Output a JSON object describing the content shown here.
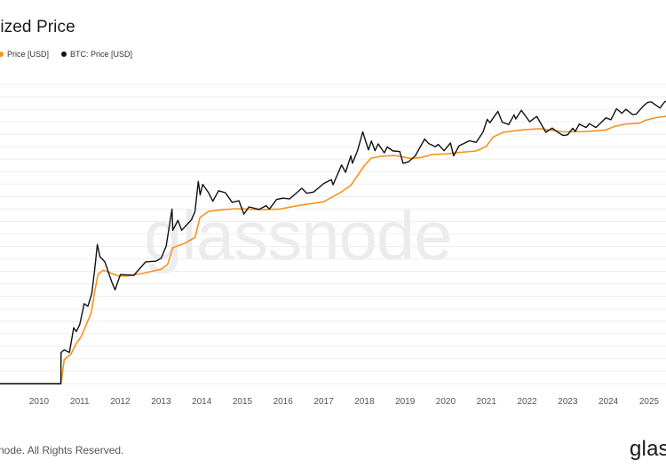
{
  "header": {
    "title": "lized Price",
    "legend": [
      {
        "label": "Price [USD]",
        "color": "#f7931a"
      },
      {
        "label": "BTC: Price [USD]",
        "color": "#111111"
      }
    ]
  },
  "watermark": "glassnode",
  "footer": {
    "copyright": "node. All Rights Reserved.",
    "brand": "glas"
  },
  "chart_data": {
    "type": "line",
    "title": "lized Price",
    "xlabel": "",
    "ylabel": "",
    "y_scale": "log",
    "ylim": [
      0.01,
      300000
    ],
    "x_ticks": [
      "2010",
      "2011",
      "2012",
      "2013",
      "2014",
      "2015",
      "2016",
      "2017",
      "2018",
      "2019",
      "2020",
      "2021",
      "2022",
      "2023",
      "2024",
      "2025"
    ],
    "xlim": [
      "2009-01-03",
      "2025-08-31"
    ],
    "grid": "horizontal",
    "legend_position": "top-left",
    "series": [
      {
        "name": "BTC: Price [USD]",
        "color": "#111111",
        "points": [
          [
            "2009-01-03",
            0.01
          ],
          [
            "2010-07-15",
            0.01
          ],
          [
            "2010-07-18",
            0.06
          ],
          [
            "2010-08-15",
            0.07
          ],
          [
            "2010-10-01",
            0.06
          ],
          [
            "2010-11-08",
            0.25
          ],
          [
            "2010-12-01",
            0.2
          ],
          [
            "2011-01-01",
            0.3
          ],
          [
            "2011-02-10",
            1.0
          ],
          [
            "2011-03-15",
            0.85
          ],
          [
            "2011-04-20",
            1.8
          ],
          [
            "2011-05-15",
            7.0
          ],
          [
            "2011-06-08",
            30.0
          ],
          [
            "2011-07-01",
            15.0
          ],
          [
            "2011-08-15",
            11.0
          ],
          [
            "2011-10-15",
            3.5
          ],
          [
            "2011-11-15",
            2.2
          ],
          [
            "2012-01-01",
            5.3
          ],
          [
            "2012-05-01",
            5.1
          ],
          [
            "2012-08-15",
            11.0
          ],
          [
            "2012-11-15",
            11.5
          ],
          [
            "2013-01-01",
            13.5
          ],
          [
            "2013-02-15",
            27.0
          ],
          [
            "2013-04-09",
            230.0
          ],
          [
            "2013-04-16",
            68.0
          ],
          [
            "2013-06-01",
            120.0
          ],
          [
            "2013-07-05",
            68.0
          ],
          [
            "2013-10-01",
            125.0
          ],
          [
            "2013-11-01",
            200.0
          ],
          [
            "2013-12-01",
            1130.0
          ],
          [
            "2013-12-18",
            520.0
          ],
          [
            "2014-01-10",
            950.0
          ],
          [
            "2014-03-01",
            600.0
          ],
          [
            "2014-04-11",
            360.0
          ],
          [
            "2014-06-01",
            660.0
          ],
          [
            "2014-08-01",
            590.0
          ],
          [
            "2014-10-01",
            340.0
          ],
          [
            "2014-12-01",
            370.0
          ],
          [
            "2015-01-14",
            172.0
          ],
          [
            "2015-03-01",
            260.0
          ],
          [
            "2015-06-01",
            225.0
          ],
          [
            "2015-08-01",
            280.0
          ],
          [
            "2015-09-01",
            230.0
          ],
          [
            "2015-11-04",
            400.0
          ],
          [
            "2016-01-01",
            430.0
          ],
          [
            "2016-03-01",
            415.0
          ],
          [
            "2016-06-18",
            760.0
          ],
          [
            "2016-08-01",
            570.0
          ],
          [
            "2016-10-01",
            610.0
          ],
          [
            "2017-01-01",
            1000.0
          ],
          [
            "2017-03-10",
            1250.0
          ],
          [
            "2017-03-25",
            930.0
          ],
          [
            "2017-06-10",
            2900.0
          ],
          [
            "2017-07-15",
            1900.0
          ],
          [
            "2017-09-01",
            4900.0
          ],
          [
            "2017-09-15",
            3200.0
          ],
          [
            "2017-11-01",
            6800.0
          ],
          [
            "2017-12-17",
            19500.0
          ],
          [
            "2018-02-06",
            6900.0
          ],
          [
            "2018-03-05",
            11500.0
          ],
          [
            "2018-04-06",
            6600.0
          ],
          [
            "2018-05-05",
            9800.0
          ],
          [
            "2018-06-29",
            5850.0
          ],
          [
            "2018-07-25",
            8200.0
          ],
          [
            "2018-09-15",
            6500.0
          ],
          [
            "2018-11-14",
            6300.0
          ],
          [
            "2018-12-15",
            3200.0
          ],
          [
            "2019-02-01",
            3500.0
          ],
          [
            "2019-04-02",
            4900.0
          ],
          [
            "2019-06-26",
            12900.0
          ],
          [
            "2019-08-01",
            10000.0
          ],
          [
            "2019-09-30",
            8300.0
          ],
          [
            "2019-10-26",
            9500.0
          ],
          [
            "2019-12-17",
            6600.0
          ],
          [
            "2020-02-13",
            10300.0
          ],
          [
            "2020-03-12",
            4900.0
          ],
          [
            "2020-05-01",
            8800.0
          ],
          [
            "2020-08-01",
            11700.0
          ],
          [
            "2020-10-01",
            10700.0
          ],
          [
            "2020-12-01",
            19200.0
          ],
          [
            "2021-01-08",
            40000.0
          ],
          [
            "2021-02-01",
            33000.0
          ],
          [
            "2021-04-14",
            63500.0
          ],
          [
            "2021-05-23",
            34000.0
          ],
          [
            "2021-07-20",
            29800.0
          ],
          [
            "2021-09-06",
            52000.0
          ],
          [
            "2021-09-21",
            41000.0
          ],
          [
            "2021-11-10",
            67500.0
          ],
          [
            "2022-01-24",
            35000.0
          ],
          [
            "2022-03-29",
            47500.0
          ],
          [
            "2022-05-12",
            29000.0
          ],
          [
            "2022-06-18",
            19000.0
          ],
          [
            "2022-08-14",
            24300.0
          ],
          [
            "2022-10-01",
            19300.0
          ],
          [
            "2022-11-21",
            15800.0
          ],
          [
            "2022-12-31",
            16500.0
          ],
          [
            "2023-02-15",
            24000.0
          ],
          [
            "2023-03-10",
            20000.0
          ],
          [
            "2023-04-14",
            30500.0
          ],
          [
            "2023-06-15",
            25000.0
          ],
          [
            "2023-07-13",
            31400.0
          ],
          [
            "2023-09-11",
            25000.0
          ],
          [
            "2023-12-10",
            44000.0
          ],
          [
            "2024-01-23",
            39000.0
          ],
          [
            "2024-03-14",
            73500.0
          ],
          [
            "2024-05-01",
            57000.0
          ],
          [
            "2024-06-07",
            71500.0
          ],
          [
            "2024-08-05",
            53000.0
          ],
          [
            "2024-09-06",
            54000.0
          ],
          [
            "2024-11-12",
            88000.0
          ],
          [
            "2024-12-17",
            106000.0
          ],
          [
            "2025-01-20",
            109000.0
          ],
          [
            "2025-04-08",
            77000.0
          ],
          [
            "2025-05-22",
            111000.0
          ],
          [
            "2025-07-14",
            122000.0
          ],
          [
            "2025-08-14",
            123000.0
          ],
          [
            "2025-08-31",
            109000.0
          ]
        ]
      },
      {
        "name": "Price [USD]",
        "color": "#f7931a",
        "points": [
          [
            "2009-01-03",
            0.01
          ],
          [
            "2010-07-18",
            0.01
          ],
          [
            "2010-08-15",
            0.04
          ],
          [
            "2010-10-15",
            0.055
          ],
          [
            "2010-12-01",
            0.1
          ],
          [
            "2011-01-15",
            0.15
          ],
          [
            "2011-03-01",
            0.3
          ],
          [
            "2011-04-15",
            0.6
          ],
          [
            "2011-05-15",
            2.0
          ],
          [
            "2011-06-15",
            5.5
          ],
          [
            "2011-08-01",
            6.8
          ],
          [
            "2011-12-15",
            4.9
          ],
          [
            "2012-03-01",
            4.9
          ],
          [
            "2012-08-01",
            5.8
          ],
          [
            "2012-12-31",
            7.2
          ],
          [
            "2013-03-01",
            9.5
          ],
          [
            "2013-04-15",
            25.0
          ],
          [
            "2013-08-01",
            32.0
          ],
          [
            "2013-11-01",
            45.0
          ],
          [
            "2013-12-15",
            140.0
          ],
          [
            "2014-03-01",
            200.0
          ],
          [
            "2014-08-01",
            225.0
          ],
          [
            "2014-12-01",
            235.0
          ],
          [
            "2015-06-01",
            222.0
          ],
          [
            "2015-12-01",
            230.0
          ],
          [
            "2016-06-01",
            285.0
          ],
          [
            "2016-12-31",
            350.0
          ],
          [
            "2017-06-01",
            600.0
          ],
          [
            "2017-09-01",
            900.0
          ],
          [
            "2017-12-31",
            2800.0
          ],
          [
            "2018-03-01",
            4300.0
          ],
          [
            "2018-06-01",
            4800.0
          ],
          [
            "2018-10-01",
            5000.0
          ],
          [
            "2018-12-15",
            4600.0
          ],
          [
            "2019-03-01",
            4200.0
          ],
          [
            "2019-06-01",
            4500.0
          ],
          [
            "2019-09-01",
            5300.0
          ],
          [
            "2020-01-01",
            5500.0
          ],
          [
            "2020-06-01",
            6100.0
          ],
          [
            "2020-10-01",
            6500.0
          ],
          [
            "2020-12-31",
            8500.0
          ],
          [
            "2021-03-01",
            14500.0
          ],
          [
            "2021-06-01",
            19000.0
          ],
          [
            "2021-12-01",
            22000.0
          ],
          [
            "2022-05-01",
            23500.0
          ],
          [
            "2022-08-01",
            21500.0
          ],
          [
            "2022-12-01",
            19500.0
          ],
          [
            "2023-06-01",
            19800.0
          ],
          [
            "2023-12-01",
            21500.0
          ],
          [
            "2024-03-01",
            27000.0
          ],
          [
            "2024-06-01",
            30500.0
          ],
          [
            "2024-10-01",
            32000.0
          ],
          [
            "2024-12-01",
            38000.0
          ],
          [
            "2025-03-01",
            44000.0
          ],
          [
            "2025-06-01",
            47500.0
          ],
          [
            "2025-08-31",
            53000.0
          ]
        ]
      }
    ]
  }
}
